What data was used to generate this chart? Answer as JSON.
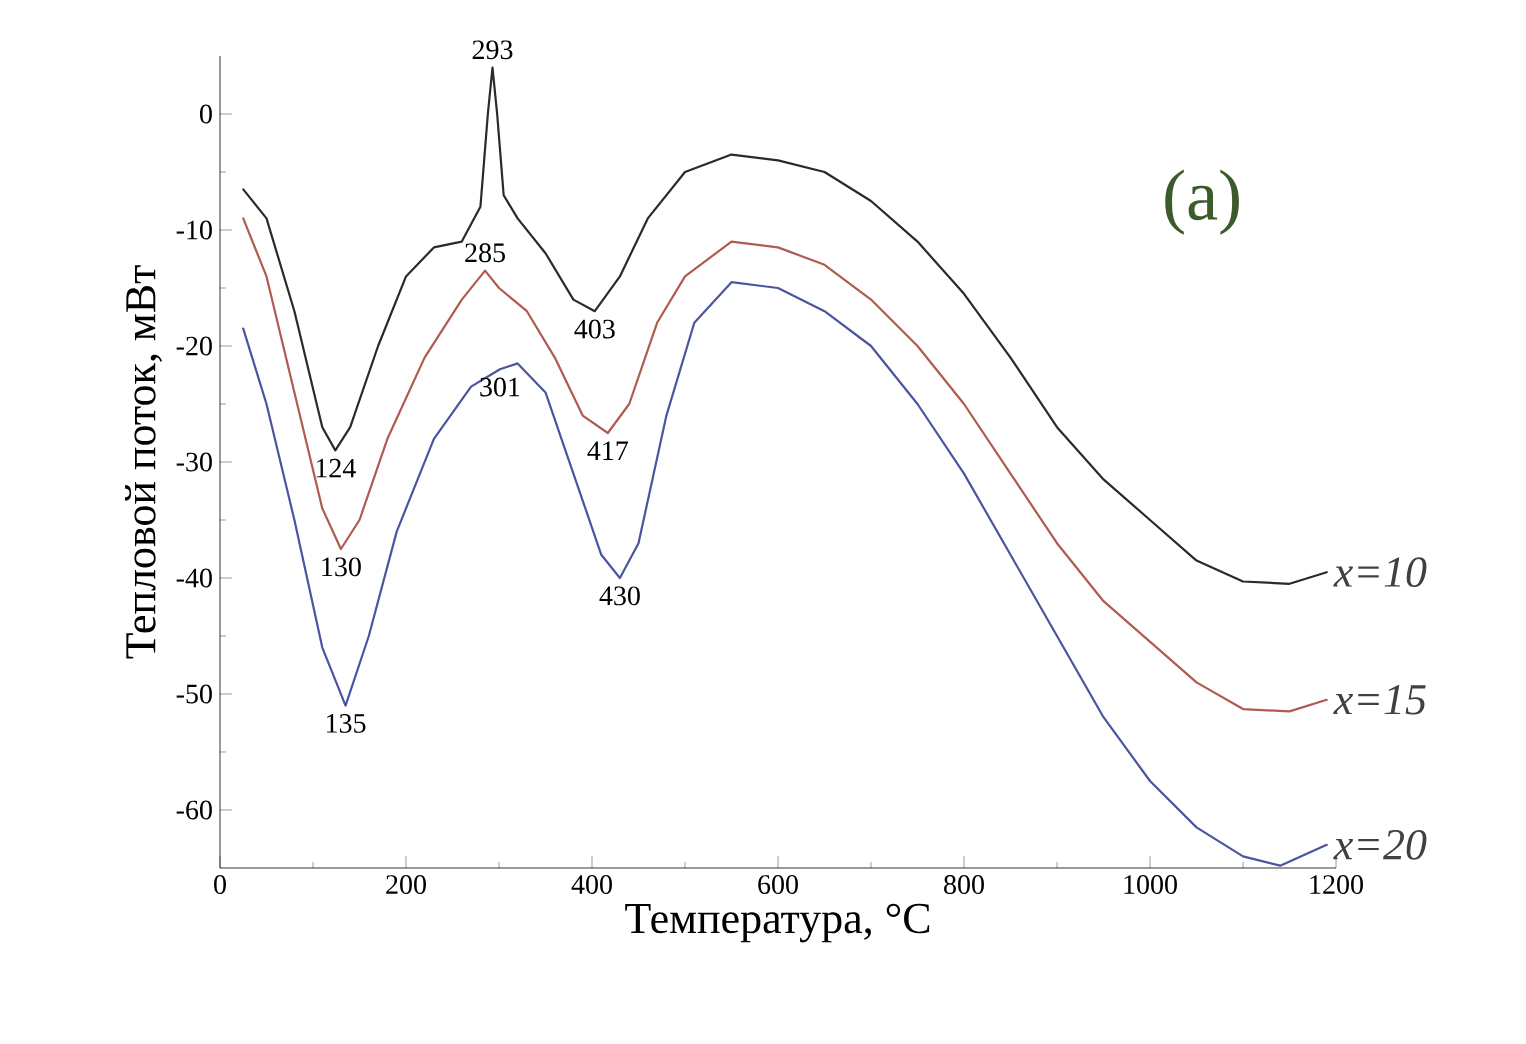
{
  "chart_data": {
    "type": "line",
    "xlabel": "Температура, °C",
    "ylabel": "Тепловой поток, мВт",
    "xlim": [
      0,
      1200
    ],
    "xticks": [
      0,
      200,
      400,
      600,
      800,
      1000,
      1200
    ],
    "ylim": [
      -65,
      5
    ],
    "yticks": [
      -60,
      -50,
      -40,
      -30,
      -20,
      -10,
      0
    ],
    "grid": false,
    "legend": false,
    "marker": "none",
    "line_style": "solid",
    "series": [
      {
        "name": "x=10",
        "color": "#2a2a2a",
        "x": [
          25,
          50,
          80,
          110,
          124,
          140,
          170,
          200,
          230,
          260,
          280,
          288,
          293,
          298,
          305,
          320,
          350,
          380,
          403,
          430,
          460,
          500,
          550,
          600,
          650,
          700,
          750,
          800,
          850,
          900,
          950,
          1000,
          1050,
          1100,
          1150,
          1190
        ],
        "values": [
          -6.5,
          -9,
          -17,
          -27,
          -29,
          -27,
          -20,
          -14,
          -11.5,
          -11,
          -8,
          0,
          4,
          0,
          -7,
          -9,
          -12,
          -16,
          -17,
          -14,
          -9,
          -5,
          -3.5,
          -4,
          -5,
          -7.5,
          -11,
          -15.5,
          -21,
          -27,
          -31.5,
          -35,
          -38.5,
          -40.3,
          -40.5,
          -39.5
        ]
      },
      {
        "name": "x=15",
        "color": "#b05a50",
        "x": [
          25,
          50,
          80,
          110,
          130,
          150,
          180,
          220,
          260,
          285,
          300,
          330,
          360,
          390,
          417,
          440,
          470,
          500,
          550,
          600,
          650,
          700,
          750,
          800,
          850,
          900,
          950,
          1000,
          1050,
          1100,
          1150,
          1190
        ],
        "values": [
          -9,
          -14,
          -24,
          -34,
          -37.5,
          -35,
          -28,
          -21,
          -16,
          -13.5,
          -15,
          -17,
          -21,
          -26,
          -27.5,
          -25,
          -18,
          -14,
          -11,
          -11.5,
          -13,
          -16,
          -20,
          -25,
          -31,
          -37,
          -42,
          -45.5,
          -49,
          -51.3,
          -51.5,
          -50.5
        ]
      },
      {
        "name": "x=20",
        "color": "#4a55a0",
        "x": [
          25,
          50,
          80,
          110,
          135,
          160,
          190,
          230,
          270,
          301,
          320,
          350,
          380,
          410,
          430,
          450,
          480,
          510,
          550,
          600,
          650,
          700,
          750,
          800,
          850,
          900,
          950,
          1000,
          1050,
          1100,
          1140,
          1190
        ],
        "values": [
          -18.5,
          -25,
          -35,
          -46,
          -51,
          -45,
          -36,
          -28,
          -23.5,
          -22,
          -21.5,
          -24,
          -31,
          -38,
          -40,
          -37,
          -26,
          -18,
          -14.5,
          -15,
          -17,
          -20,
          -25,
          -31,
          -38,
          -45,
          -52,
          -57.5,
          -61.5,
          -64,
          -64.8,
          -63
        ]
      }
    ],
    "annotations": [
      {
        "text": "293",
        "x": 293,
        "y": 4
      },
      {
        "text": "124",
        "x": 124,
        "y": -29
      },
      {
        "text": "130",
        "x": 130,
        "y": -37.5
      },
      {
        "text": "135",
        "x": 135,
        "y": -51
      },
      {
        "text": "285",
        "x": 285,
        "y": -13.5
      },
      {
        "text": "301",
        "x": 301,
        "y": -22
      },
      {
        "text": "403",
        "x": 403,
        "y": -17
      },
      {
        "text": "417",
        "x": 417,
        "y": -27.5
      },
      {
        "text": "430",
        "x": 430,
        "y": -40
      },
      "(a)"
    ]
  }
}
